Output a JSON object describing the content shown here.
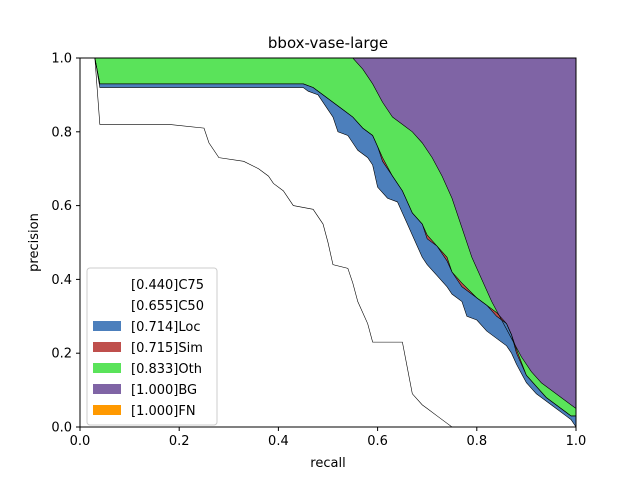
{
  "chart_data": {
    "type": "area",
    "title": "bbox-vase-large",
    "xlabel": "recall",
    "ylabel": "precision",
    "xlim": [
      0,
      1
    ],
    "ylim": [
      0,
      1
    ],
    "x_ticks": [
      "0.0",
      "0.2",
      "0.4",
      "0.6",
      "0.8",
      "1.0"
    ],
    "y_ticks": [
      "0.0",
      "0.2",
      "0.4",
      "0.6",
      "0.8",
      "1.0"
    ],
    "grid": false,
    "legend_position": "lower-left",
    "series": [
      {
        "name": "[0.440]C75",
        "color": "#ffffff",
        "x": [
          0.0,
          0.03,
          0.04,
          0.18,
          0.25,
          0.26,
          0.28,
          0.33,
          0.36,
          0.38,
          0.39,
          0.41,
          0.43,
          0.47,
          0.49,
          0.5,
          0.51,
          0.54,
          0.55,
          0.56,
          0.58,
          0.59,
          0.65,
          0.66,
          0.67,
          0.69,
          0.7,
          0.72,
          0.74,
          0.75,
          1.0
        ],
        "values": [
          1.0,
          1.0,
          0.82,
          0.82,
          0.81,
          0.77,
          0.73,
          0.72,
          0.7,
          0.68,
          0.66,
          0.64,
          0.6,
          0.59,
          0.55,
          0.5,
          0.44,
          0.43,
          0.39,
          0.34,
          0.28,
          0.23,
          0.23,
          0.16,
          0.09,
          0.06,
          0.05,
          0.03,
          0.01,
          0.0,
          0.0
        ]
      },
      {
        "name": "[0.655]C50",
        "color": "#ffffff",
        "x": [
          0.0,
          0.03,
          0.04,
          0.45,
          0.46,
          0.48,
          0.49,
          0.5,
          0.51,
          0.52,
          0.54,
          0.55,
          0.56,
          0.58,
          0.59,
          0.6,
          0.62,
          0.64,
          0.65,
          0.66,
          0.67,
          0.68,
          0.69,
          0.7,
          0.72,
          0.74,
          0.75,
          0.77,
          0.78,
          0.8,
          0.82,
          0.84,
          0.86,
          0.87,
          0.88,
          0.9,
          0.92,
          0.94,
          0.96,
          0.98,
          0.99,
          1.0
        ],
        "values": [
          1.0,
          1.0,
          0.92,
          0.92,
          0.91,
          0.9,
          0.88,
          0.86,
          0.84,
          0.8,
          0.79,
          0.77,
          0.75,
          0.73,
          0.71,
          0.65,
          0.62,
          0.61,
          0.58,
          0.55,
          0.52,
          0.49,
          0.46,
          0.44,
          0.41,
          0.38,
          0.36,
          0.34,
          0.3,
          0.29,
          0.26,
          0.24,
          0.22,
          0.2,
          0.17,
          0.12,
          0.09,
          0.07,
          0.05,
          0.03,
          0.02,
          0.0
        ]
      },
      {
        "name": "[0.714]Loc",
        "color": "#4C7FBC",
        "x": [
          0.0,
          0.03,
          0.04,
          0.45,
          0.47,
          0.49,
          0.51,
          0.53,
          0.55,
          0.57,
          0.59,
          0.6,
          0.61,
          0.63,
          0.65,
          0.66,
          0.67,
          0.69,
          0.7,
          0.72,
          0.74,
          0.75,
          0.77,
          0.8,
          0.82,
          0.84,
          0.86,
          0.87,
          0.88,
          0.9,
          0.92,
          0.94,
          0.96,
          0.98,
          0.99,
          1.0
        ],
        "values": [
          1.0,
          1.0,
          0.93,
          0.93,
          0.92,
          0.9,
          0.88,
          0.86,
          0.84,
          0.81,
          0.79,
          0.76,
          0.72,
          0.68,
          0.64,
          0.61,
          0.58,
          0.55,
          0.51,
          0.49,
          0.45,
          0.42,
          0.38,
          0.35,
          0.33,
          0.3,
          0.28,
          0.25,
          0.2,
          0.14,
          0.11,
          0.08,
          0.06,
          0.04,
          0.03,
          0.03
        ]
      },
      {
        "name": "[0.715]Sim",
        "color": "#BF4F4C",
        "x": [
          0.0,
          0.03,
          0.04,
          0.45,
          0.47,
          0.49,
          0.51,
          0.53,
          0.55,
          0.57,
          0.59,
          0.6,
          0.61,
          0.63,
          0.65,
          0.66,
          0.67,
          0.69,
          0.7,
          0.72,
          0.74,
          0.75,
          0.77,
          0.8,
          0.82,
          0.84,
          0.86,
          0.87,
          0.88,
          0.9,
          0.92,
          0.94,
          0.96,
          0.98,
          0.99,
          1.0
        ],
        "values": [
          1.0,
          1.0,
          0.93,
          0.93,
          0.92,
          0.9,
          0.88,
          0.86,
          0.84,
          0.81,
          0.79,
          0.76,
          0.73,
          0.68,
          0.64,
          0.61,
          0.58,
          0.55,
          0.52,
          0.49,
          0.46,
          0.42,
          0.39,
          0.35,
          0.33,
          0.31,
          0.28,
          0.25,
          0.21,
          0.14,
          0.11,
          0.08,
          0.06,
          0.04,
          0.03,
          0.03
        ]
      },
      {
        "name": "[0.833]Oth",
        "color": "#5AE35A",
        "x": [
          0.0,
          0.03,
          0.04,
          0.55,
          0.57,
          0.59,
          0.61,
          0.63,
          0.65,
          0.67,
          0.69,
          0.71,
          0.73,
          0.75,
          0.77,
          0.79,
          0.81,
          0.83,
          0.85,
          0.87,
          0.89,
          0.91,
          0.93,
          0.95,
          0.97,
          0.99,
          1.0
        ],
        "values": [
          1.0,
          1.0,
          1.0,
          1.0,
          0.97,
          0.93,
          0.88,
          0.84,
          0.82,
          0.8,
          0.77,
          0.73,
          0.68,
          0.62,
          0.54,
          0.46,
          0.4,
          0.34,
          0.29,
          0.24,
          0.19,
          0.15,
          0.12,
          0.1,
          0.08,
          0.06,
          0.05
        ]
      },
      {
        "name": "[1.000]BG",
        "color": "#7F64A5",
        "x": [
          0.0,
          1.0
        ],
        "values": [
          1.0,
          1.0
        ]
      },
      {
        "name": "[1.000]FN",
        "color": "#FF9900",
        "x": [
          0.0,
          1.0
        ],
        "values": [
          1.0,
          1.0
        ]
      }
    ]
  }
}
